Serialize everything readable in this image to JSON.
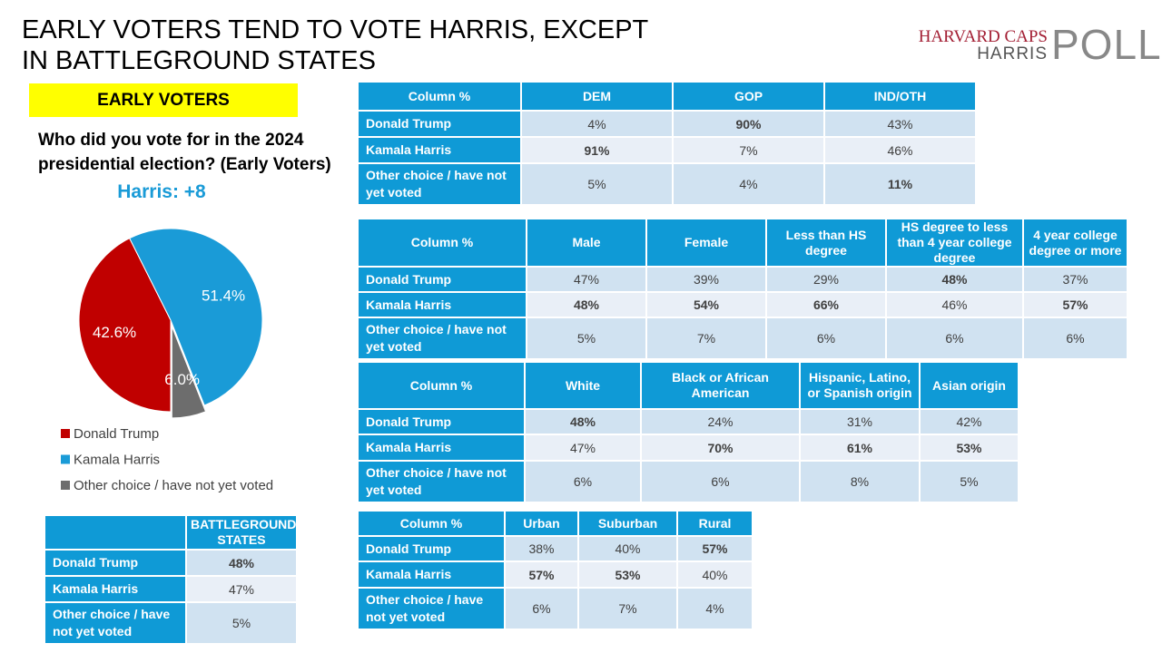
{
  "title": "EARLY VOTERS TEND TO VOTE HARRIS, EXCEPT IN BATTLEGROUND STATES",
  "logo": {
    "line1": "HARVARD CAPS",
    "line2": "HARRIS",
    "poll": "POLL"
  },
  "badge": "EARLY VOTERS",
  "chart_data": {
    "type": "pie",
    "title": "Who did you vote for in the 2024 presidential election? (Early Voters)",
    "subtitle": "Harris: +8",
    "categories": [
      "Donald Trump",
      "Kamala Harris",
      "Other choice / have not yet voted"
    ],
    "values": [
      42.6,
      51.4,
      6.0
    ],
    "value_labels": [
      "42.6%",
      "51.4%",
      "6.0%"
    ],
    "colors": [
      "#c00000",
      "#1a9bd7",
      "#6d6d6d"
    ]
  },
  "tables": [
    {
      "header": [
        "Column %",
        "DEM",
        "GOP",
        "IND/OTH"
      ],
      "rows": [
        [
          "Donald Trump",
          "4%",
          "90%",
          "43%"
        ],
        [
          "Kamala Harris",
          "91%",
          "7%",
          "46%"
        ],
        [
          "Other choice / have not yet voted",
          "5%",
          "4%",
          "11%"
        ]
      ],
      "bold": [
        [
          0,
          2
        ],
        [
          1,
          1
        ],
        [
          2,
          3
        ]
      ]
    },
    {
      "header": [
        "Column %",
        "Male",
        "Female",
        "Less than HS degree",
        "HS degree to less than 4 year college degree",
        "4 year college degree or more"
      ],
      "rows": [
        [
          "Donald Trump",
          "47%",
          "39%",
          "29%",
          "48%",
          "37%"
        ],
        [
          "Kamala Harris",
          "48%",
          "54%",
          "66%",
          "46%",
          "57%"
        ],
        [
          "Other choice / have not yet voted",
          "5%",
          "7%",
          "6%",
          "6%",
          "6%"
        ]
      ],
      "bold": [
        [
          0,
          4
        ],
        [
          1,
          1
        ],
        [
          1,
          2
        ],
        [
          1,
          3
        ],
        [
          1,
          5
        ]
      ]
    },
    {
      "header": [
        "Column %",
        "White",
        "Black or African American",
        "Hispanic, Latino, or Spanish origin",
        "Asian origin"
      ],
      "rows": [
        [
          "Donald Trump",
          "48%",
          "24%",
          "31%",
          "42%"
        ],
        [
          "Kamala Harris",
          "47%",
          "70%",
          "61%",
          "53%"
        ],
        [
          "Other choice / have not yet voted",
          "6%",
          "6%",
          "8%",
          "5%"
        ]
      ],
      "bold": [
        [
          0,
          1
        ],
        [
          1,
          2
        ],
        [
          1,
          3
        ],
        [
          1,
          4
        ]
      ]
    },
    {
      "header": [
        "Column %",
        "Urban",
        "Suburban",
        "Rural"
      ],
      "rows": [
        [
          "Donald Trump",
          "38%",
          "40%",
          "57%"
        ],
        [
          "Kamala Harris",
          "57%",
          "53%",
          "40%"
        ],
        [
          "Other choice / have not yet voted",
          "6%",
          "7%",
          "4%"
        ]
      ],
      "bold": [
        [
          0,
          3
        ],
        [
          1,
          1
        ],
        [
          1,
          2
        ]
      ]
    },
    {
      "header": [
        "BATTLEGROUND STATES"
      ],
      "rows": [
        [
          "Donald Trump",
          "48%"
        ],
        [
          "Kamala Harris",
          "47%"
        ],
        [
          "Other choice / have not yet voted",
          "5%"
        ]
      ],
      "bold": [
        [
          0,
          1
        ]
      ]
    }
  ]
}
